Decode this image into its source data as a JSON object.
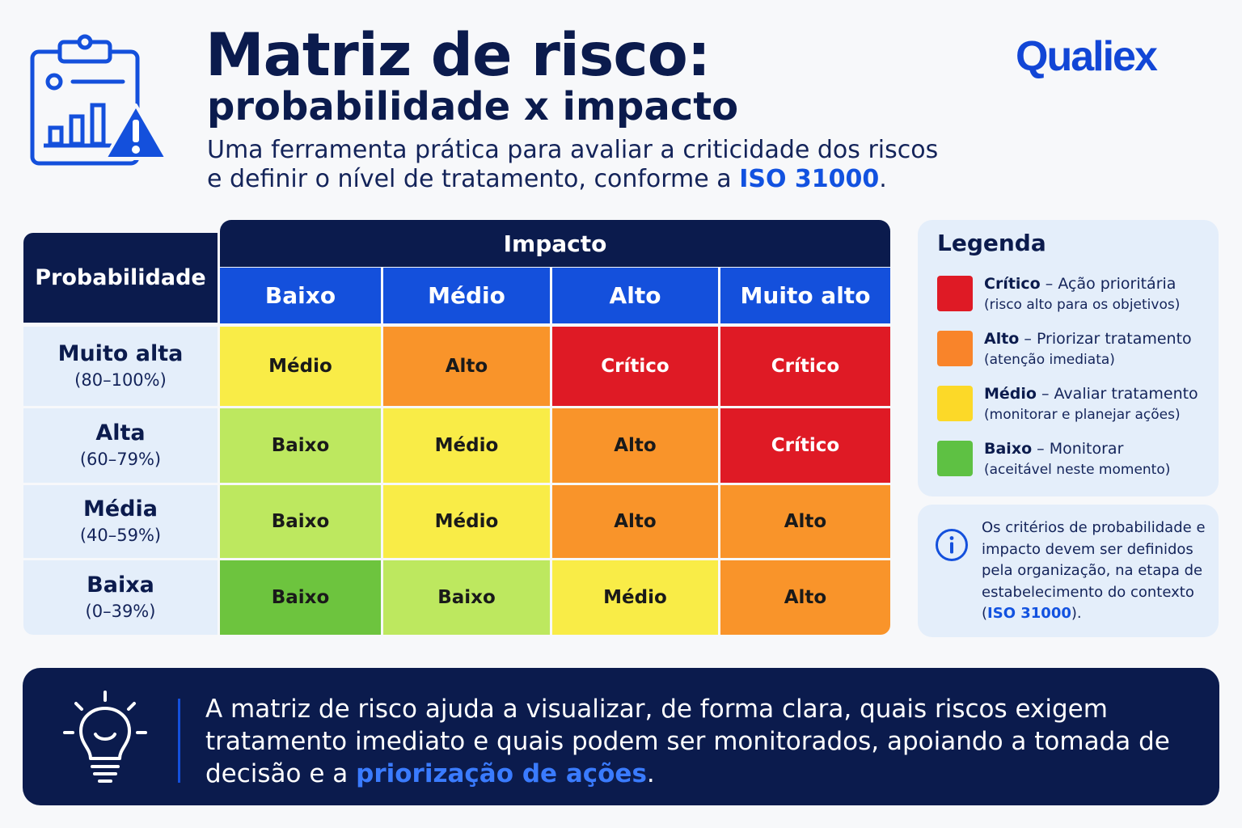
{
  "header": {
    "title": "Matriz de risco:",
    "subtitle": "probabilidade x impacto",
    "desc_line1": "Uma ferramenta prática para avaliar a criticidade dos riscos",
    "desc_line2_pre": "e definir o nível de tratamento, conforme a ",
    "desc_line2_hl": "ISO 31000",
    "desc_line2_post": ".",
    "brand": "Qualiex",
    "icon": "clipboard-chart-warning-icon"
  },
  "matrix": {
    "probability_header": "Probabilidade",
    "impact_header": "Impacto",
    "columns": [
      "Baixo",
      "Médio",
      "Alto",
      "Muito alto"
    ],
    "rows": [
      {
        "name": "Muito alta",
        "pct": "(80–100%)",
        "cells": [
          "Médio",
          "Alto",
          "Crítico",
          "Crítico"
        ]
      },
      {
        "name": "Alta",
        "pct": "(60–79%)",
        "cells": [
          "Baixo",
          "Médio",
          "Alto",
          "Crítico"
        ]
      },
      {
        "name": "Média",
        "pct": "(40–59%)",
        "cells": [
          "Baixo",
          "Médio",
          "Alto",
          "Alto"
        ]
      },
      {
        "name": "Baixa",
        "pct": "(0–39%)",
        "cells": [
          "Baixo",
          "Baixo",
          "Médio",
          "Alto"
        ]
      }
    ],
    "colors": {
      "critico": "#df1a25",
      "alto": "#f9942a",
      "medio": "#f9ec47",
      "baixo": "#bde85f",
      "baixo_strong": "#6dc43e",
      "header_dark": "#0b1b4d",
      "header_blue": "#1450dc"
    }
  },
  "legend": {
    "title": "Legenda",
    "items": [
      {
        "label": "Crítico",
        "action": " – Ação prioritária",
        "note": "(risco alto para os objetivos)",
        "color": "#df1a25"
      },
      {
        "label": "Alto",
        "action": " – Priorizar tratamento",
        "note": "(atenção imediata)",
        "color": "#f9842a"
      },
      {
        "label": "Médio",
        "action": " – Avaliar tratamento",
        "note": "(monitorar e planejar ações)",
        "color": "#fcd928"
      },
      {
        "label": "Baixo",
        "action": " – Monitorar",
        "note": "(aceitável neste momento)",
        "color": "#5ec143"
      }
    ]
  },
  "info": {
    "icon": "info-icon",
    "text_pre": "Os critérios de probabilidade e impacto devem ser definidos pela organização, na etapa de estabelecimento do contexto (",
    "text_hl": "ISO 31000",
    "text_post": ")."
  },
  "footer": {
    "icon": "lightbulb-icon",
    "text_pre": "A matriz de risco ajuda a visualizar, de forma clara, quais riscos exigem tratamento imediato e quais podem ser monitorados, apoiando a tomada de decisão e a ",
    "text_hl": "priorização de ações",
    "text_post": "."
  }
}
